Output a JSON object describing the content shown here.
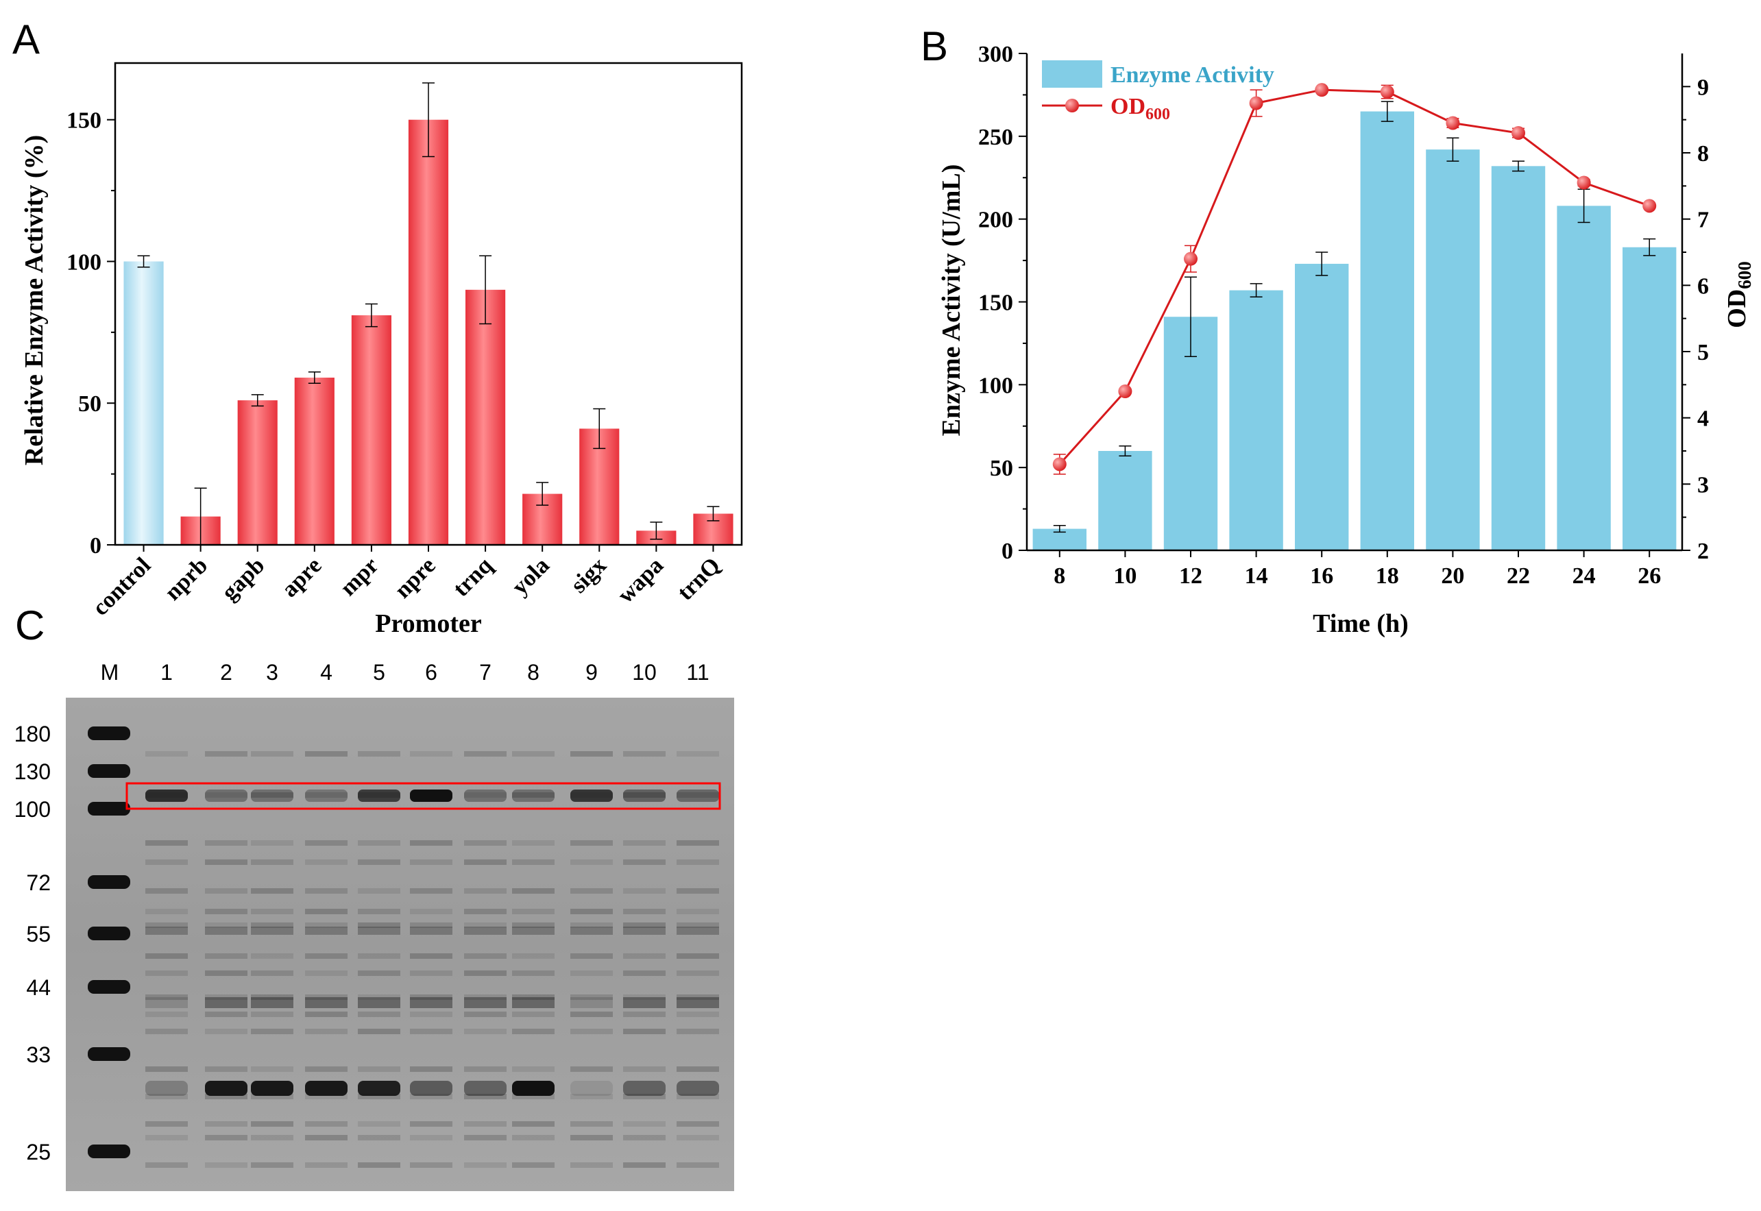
{
  "panels": {
    "a": {
      "letter": "A"
    },
    "b": {
      "letter": "B"
    },
    "c": {
      "letter": "C"
    }
  },
  "colors": {
    "control_bar": "#b8e0f0",
    "promoter_bar": "#e8323c",
    "enzyme_bar": "#82cde6",
    "od_line": "#d7191c",
    "enzyme_legend_text": "#3aa4c8",
    "od_legend_text": "#d7191c",
    "gel_box": "#ff0000"
  },
  "chart_data": [
    {
      "id": "panel-a",
      "type": "bar",
      "xlabel": "Promoter",
      "ylabel": "Relative Enzyme Activity (%)",
      "ylim": [
        0,
        170
      ],
      "yticks": [
        0,
        50,
        100,
        150
      ],
      "categories": [
        "control",
        "nprb",
        "gapb",
        "apre",
        "mpr",
        "npre",
        "trnq",
        "yola",
        "sigx",
        "wapa",
        "trnQ"
      ],
      "values": [
        100,
        10,
        51,
        59,
        81,
        150,
        90,
        18,
        41,
        5,
        11
      ],
      "errors": [
        2,
        10,
        2,
        2,
        4,
        13,
        12,
        4,
        7,
        3,
        2.5
      ],
      "grid": false
    },
    {
      "id": "panel-b",
      "type": "bar",
      "xlabel": "Time (h)",
      "ylabel": "Enzyme Activity (U/mL)",
      "y2label_main": "OD",
      "y2label_sub": "600",
      "ylim": [
        0,
        300
      ],
      "yticks": [
        0,
        50,
        100,
        150,
        200,
        250,
        300
      ],
      "y2lim": [
        2,
        9.5
      ],
      "y2ticks": [
        2,
        3,
        4,
        5,
        6,
        7,
        8,
        9
      ],
      "x": [
        8,
        10,
        12,
        14,
        16,
        18,
        20,
        22,
        24,
        26
      ],
      "series": [
        {
          "name": "Enzyme Activity",
          "type": "bar",
          "axis": "left",
          "values": [
            13,
            60,
            141,
            157,
            173,
            265,
            242,
            232,
            208,
            183
          ],
          "errors": [
            2,
            3,
            24,
            4,
            7,
            6,
            7,
            3,
            10,
            5
          ]
        },
        {
          "name_main": "OD",
          "name_sub": "600",
          "type": "line",
          "axis": "right",
          "values": [
            3.3,
            4.4,
            6.4,
            8.75,
            8.95,
            8.92,
            8.45,
            8.3,
            7.55,
            7.2
          ],
          "errors": [
            0.15,
            0.03,
            0.2,
            0.2,
            0.02,
            0.1,
            0.07,
            0.07,
            0.05,
            0.03
          ]
        }
      ],
      "legend_position": "top-left",
      "grid": false
    }
  ],
  "gel": {
    "lanes": [
      "M",
      "1",
      "2",
      "3",
      "4",
      "5",
      "6",
      "7",
      "8",
      "9",
      "10",
      "11"
    ],
    "markers": [
      "180",
      "130",
      "100",
      "72",
      "55",
      "44",
      "33",
      "25"
    ],
    "target_band_intensity": [
      0.8,
      0.35,
      0.35,
      0.3,
      0.7,
      1.0,
      0.35,
      0.35,
      0.75,
      0.45,
      0.4
    ],
    "low_band_intensity": [
      0.25,
      0.95,
      0.95,
      0.95,
      0.9,
      0.5,
      0.45,
      1.0,
      0.1,
      0.45,
      0.45
    ]
  }
}
